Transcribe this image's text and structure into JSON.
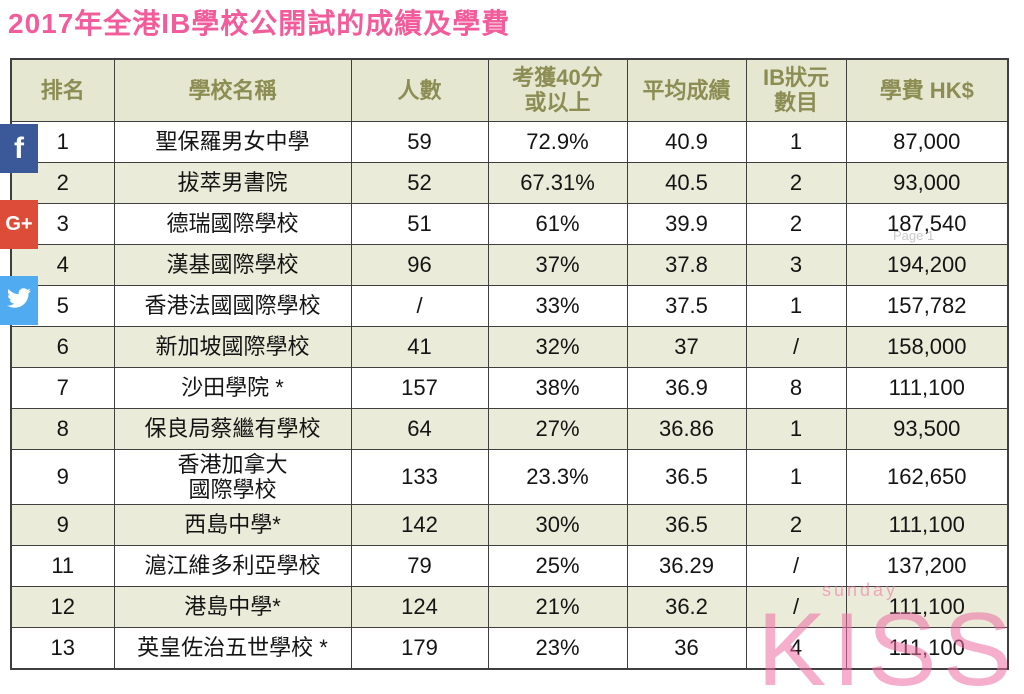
{
  "page": {
    "title": "2017年全港IB學校公開試的成績及學費"
  },
  "social": {
    "facebook_label": "f",
    "gplus_label": "G+"
  },
  "watermark": {
    "page_label": "Page 1",
    "brand_small": "sunday",
    "brand_big": "KISS"
  },
  "colors": {
    "title_pink": "#f25c9b",
    "header_bg": "#e6e7d1",
    "header_text": "#8c8d53",
    "row_alt_bg": "#eaebd8",
    "border": "#3f3f3f",
    "facebook": "#3b5998",
    "gplus": "#dd4b39",
    "twitter": "#50abf1",
    "watermark_pink": "#ee6fa5"
  },
  "chart_data": {
    "type": "table",
    "title": "2017年全港IB學校公開試的成績及學費",
    "columns": [
      "排名",
      "學校名稱",
      "人數",
      "考獲40分\n或以上",
      "平均成績",
      "IB狀元\n數目",
      "學費 HK$"
    ],
    "rows": [
      [
        "1",
        "聖保羅男女中學",
        "59",
        "72.9%",
        "40.9",
        "1",
        "87,000"
      ],
      [
        "2",
        "拔萃男書院",
        "52",
        "67.31%",
        "40.5",
        "2",
        "93,000"
      ],
      [
        "3",
        "德瑞國際學校",
        "51",
        "61%",
        "39.9",
        "2",
        "187,540"
      ],
      [
        "4",
        "漢基國際學校",
        "96",
        "37%",
        "37.8",
        "3",
        "194,200"
      ],
      [
        "5",
        "香港法國國際學校",
        "/",
        "33%",
        "37.5",
        "1",
        "157,782"
      ],
      [
        "6",
        "新加坡國際學校",
        "41",
        "32%",
        "37",
        "/",
        "158,000"
      ],
      [
        "7",
        "沙田學院 *",
        "157",
        "38%",
        "36.9",
        "8",
        "111,100"
      ],
      [
        "8",
        "保良局蔡繼有學校",
        "64",
        "27%",
        "36.86",
        "1",
        "93,500"
      ],
      [
        "9",
        "香港加拿大\n國際學校",
        "133",
        "23.3%",
        "36.5",
        "1",
        "162,650"
      ],
      [
        "9",
        "西島中學*",
        "142",
        "30%",
        "36.5",
        "2",
        "111,100"
      ],
      [
        "11",
        "滬江維多利亞學校",
        "79",
        "25%",
        "36.29",
        "/",
        "137,200"
      ],
      [
        "12",
        "港島中學*",
        "124",
        "21%",
        "36.2",
        "/",
        "111,100"
      ],
      [
        "13",
        "英皇佐治五世學校 *",
        "179",
        "23%",
        "36",
        "4",
        "111,100"
      ]
    ]
  }
}
